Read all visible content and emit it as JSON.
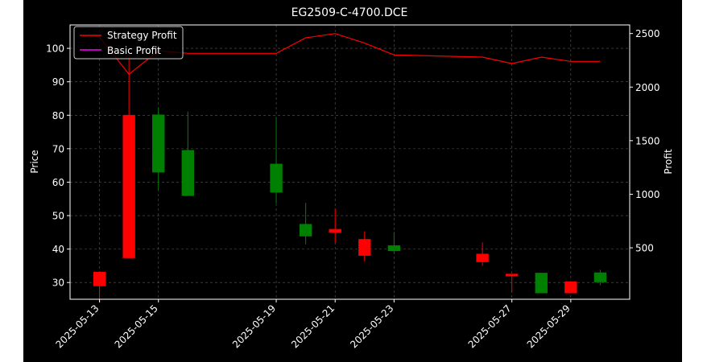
{
  "chart_data": {
    "type": "candlestick",
    "title": "EG2509-C-4700.DCE",
    "xlabel": "",
    "ylabel": "Price",
    "ylabel_right": "Profit",
    "legend": {
      "placement": "top-left",
      "entries": [
        "Strategy Profit",
        "Basic Profit"
      ]
    },
    "grid": true,
    "xlim": [
      "2025-05-12",
      "2025-05-31"
    ],
    "ylim": [
      25,
      107
    ],
    "ylim_right": [
      20,
      2580
    ],
    "x_ticks": [
      "2025-05-13",
      "2025-05-15",
      "2025-05-19",
      "2025-05-21",
      "2025-05-23",
      "2025-05-27",
      "2025-05-29"
    ],
    "y_ticks": [
      30,
      40,
      50,
      60,
      70,
      80,
      90,
      100
    ],
    "y_ticks_right": [
      500,
      1000,
      1500,
      2000,
      2500
    ],
    "candles": [
      {
        "date": "2025-05-13",
        "open": 33.2,
        "high": 33.2,
        "low": 24.4,
        "close": 28.9
      },
      {
        "date": "2025-05-14",
        "open": 80.1,
        "high": 98.2,
        "low": 37.3,
        "close": 37.3
      },
      {
        "date": "2025-05-15",
        "open": 62.9,
        "high": 82.3,
        "low": 57.7,
        "close": 80.2
      },
      {
        "date": "2025-05-16",
        "open": 55.9,
        "high": 81.1,
        "low": 55.9,
        "close": 69.6
      },
      {
        "date": "2025-05-19",
        "open": 56.9,
        "high": 79.3,
        "low": 53.7,
        "close": 65.5
      },
      {
        "date": "2025-05-20",
        "open": 43.8,
        "high": 53.8,
        "low": 41.4,
        "close": 47.5
      },
      {
        "date": "2025-05-21",
        "open": 46.0,
        "high": 52.1,
        "low": 41.8,
        "close": 44.9
      },
      {
        "date": "2025-05-22",
        "open": 43.0,
        "high": 45.3,
        "low": 36.3,
        "close": 38.0
      },
      {
        "date": "2025-05-23",
        "open": 39.4,
        "high": 45.1,
        "low": 39.1,
        "close": 41.1
      },
      {
        "date": "2025-05-26",
        "open": 38.6,
        "high": 42.0,
        "low": 35.0,
        "close": 36.1
      },
      {
        "date": "2025-05-27",
        "open": 32.6,
        "high": 32.6,
        "low": 27.0,
        "close": 31.9
      },
      {
        "date": "2025-05-28",
        "open": 26.8,
        "high": 32.9,
        "low": 26.8,
        "close": 32.9
      },
      {
        "date": "2025-05-29",
        "open": 30.3,
        "high": 30.3,
        "low": 26.8,
        "close": 26.8
      },
      {
        "date": "2025-05-30",
        "open": 30.1,
        "high": 33.8,
        "low": 29.2,
        "close": 33.0
      }
    ],
    "series": [
      {
        "name": "Strategy Profit",
        "axis": "right",
        "color": "#ff0000",
        "dates": [
          "2025-05-13",
          "2025-05-14",
          "2025-05-15",
          "2025-05-16",
          "2025-05-19",
          "2025-05-20",
          "2025-05-21",
          "2025-05-22",
          "2025-05-23",
          "2025-05-26",
          "2025-05-27",
          "2025-05-28",
          "2025-05-29",
          "2025-05-30"
        ],
        "values": [
          2465,
          2120,
          2340,
          2315,
          2315,
          2460,
          2500,
          2410,
          2300,
          2280,
          2220,
          2280,
          2240,
          2240
        ]
      },
      {
        "name": "Basic Profit",
        "axis": "right",
        "color": "#ff00ff",
        "dates": [],
        "values": []
      }
    ],
    "colors": {
      "up": "#008000",
      "down": "#ff0000",
      "background": "#000000",
      "axes": "#ffffff",
      "grid": "#808080"
    }
  }
}
